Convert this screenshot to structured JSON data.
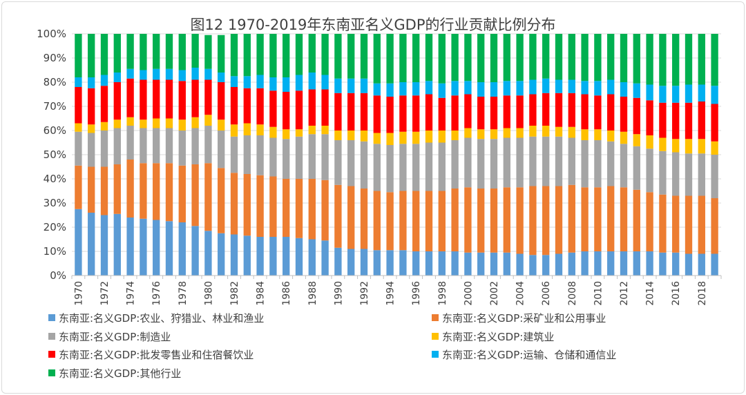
{
  "chart_data": {
    "type": "bar",
    "stacked": true,
    "title": "图12 1970-2019年东南亚名义GDP的行业贡献比例分布",
    "xlabel": "",
    "ylabel": "",
    "ylim": [
      0,
      100
    ],
    "yticks": [
      "0%",
      "10%",
      "20%",
      "30%",
      "40%",
      "50%",
      "60%",
      "70%",
      "80%",
      "90%",
      "100%"
    ],
    "xtick_labels": [
      "1970",
      "1972",
      "1974",
      "1976",
      "1978",
      "1980",
      "1982",
      "1984",
      "1986",
      "1988",
      "1990",
      "1992",
      "1994",
      "1996",
      "1998",
      "2000",
      "2002",
      "2004",
      "2006",
      "2008",
      "2010",
      "2012",
      "2014",
      "2016",
      "2018"
    ],
    "categories": [
      "1970",
      "1971",
      "1972",
      "1973",
      "1974",
      "1975",
      "1976",
      "1977",
      "1978",
      "1979",
      "1980",
      "1981",
      "1982",
      "1983",
      "1984",
      "1985",
      "1986",
      "1987",
      "1988",
      "1989",
      "1990",
      "1991",
      "1992",
      "1993",
      "1994",
      "1995",
      "1996",
      "1997",
      "1998",
      "1999",
      "2000",
      "2001",
      "2002",
      "2003",
      "2004",
      "2005",
      "2006",
      "2007",
      "2008",
      "2009",
      "2010",
      "2011",
      "2012",
      "2013",
      "2014",
      "2015",
      "2016",
      "2017",
      "2018",
      "2019"
    ],
    "series": [
      {
        "name": "东南亚:名义GDP:农业、狩猎业、林业和渔业",
        "color": "#5b9bd5",
        "values": [
          27.5,
          26,
          25,
          25.5,
          24,
          23.5,
          23,
          22.5,
          22,
          20.5,
          18.5,
          17.5,
          17,
          16.5,
          16,
          16,
          16,
          15.5,
          15,
          14.5,
          11.5,
          11,
          11,
          10.5,
          10.5,
          10.5,
          10,
          10,
          10,
          10,
          9.5,
          9.5,
          9.5,
          9.5,
          9,
          8.5,
          8.5,
          9,
          9.5,
          10,
          10,
          10,
          10,
          10,
          10,
          9.5,
          9.5,
          9,
          9,
          9
        ]
      },
      {
        "name": "东南亚:名义GDP:采矿业和公用事业",
        "color": "#ed7d31",
        "values": [
          18,
          19,
          20,
          20.5,
          24,
          23,
          23.5,
          24,
          23.5,
          25.5,
          28,
          27,
          25.5,
          25.5,
          25.5,
          25,
          24,
          24.5,
          25,
          25,
          26,
          26,
          25,
          24.5,
          24,
          24.5,
          25,
          25,
          25,
          26,
          27,
          26.5,
          26.5,
          27,
          27.5,
          28.5,
          28.5,
          28,
          28,
          26.5,
          26.5,
          27,
          26.5,
          25.5,
          24.5,
          24,
          23.5,
          24,
          24,
          23
        ]
      },
      {
        "name": "东南亚:名义GDP:制造业",
        "color": "#a5a5a5",
        "values": [
          14,
          14,
          15,
          15,
          14,
          14.5,
          14.5,
          14.5,
          14.5,
          15,
          15.5,
          15.5,
          15,
          16,
          16.5,
          16,
          16.5,
          17.5,
          18.5,
          19,
          18.5,
          19,
          19.5,
          19.5,
          19.5,
          19.5,
          19.5,
          20,
          20,
          20,
          20.5,
          20.5,
          20.5,
          20.5,
          20.5,
          20.5,
          20.5,
          20.5,
          19.5,
          19.5,
          19.5,
          18.5,
          18,
          18,
          18,
          18,
          18,
          17.5,
          17.5,
          18
        ]
      },
      {
        "name": "东南亚:名义GDP:建筑业",
        "color": "#ffc000",
        "values": [
          3.5,
          3.5,
          3.5,
          3.5,
          3.5,
          3.5,
          4,
          4,
          4.5,
          4.5,
          4.5,
          4.5,
          5,
          5,
          4.5,
          4.5,
          4,
          3,
          3.5,
          3.5,
          4,
          4,
          4.5,
          4.5,
          5,
          5,
          5,
          5,
          5,
          4,
          4,
          4,
          4,
          4,
          4,
          4.5,
          4.5,
          4,
          4.5,
          4.5,
          4.5,
          4.5,
          5,
          5,
          5.5,
          5.5,
          5.5,
          6,
          6,
          5.5
        ]
      },
      {
        "name": "东南亚:名义GDP:批发零售业和住宿餐饮业",
        "color": "#ff0000",
        "values": [
          15,
          15,
          15,
          15.5,
          16,
          16.5,
          16,
          16,
          16,
          15.5,
          14.5,
          15.5,
          15.5,
          14.5,
          15,
          15,
          15.5,
          16,
          15,
          15,
          15.5,
          15.5,
          15.5,
          15.5,
          15,
          15,
          15,
          15,
          13.5,
          14.5,
          14,
          13.5,
          13.5,
          13.5,
          13.5,
          13,
          13.5,
          14,
          14,
          14.5,
          14,
          15,
          14.5,
          15,
          14.5,
          14.5,
          15,
          15,
          15.5,
          15.5
        ]
      },
      {
        "name": "东南亚:名义GDP:运输、仓储和通信业",
        "color": "#00b0f0",
        "values": [
          4,
          4.5,
          4.5,
          4,
          4,
          4,
          4.5,
          4.5,
          4.5,
          5,
          4.5,
          4,
          4.5,
          5,
          5.5,
          5.5,
          6,
          6.5,
          7,
          6,
          6,
          6,
          6,
          5,
          5.5,
          5.5,
          5.5,
          5.5,
          6,
          6,
          5.5,
          6,
          6,
          6,
          6,
          6,
          6,
          5.5,
          5.5,
          5.5,
          6,
          6,
          6,
          6,
          6.5,
          7,
          7,
          7.5,
          7,
          7.5
        ]
      },
      {
        "name": "东南亚:名义GDP:其他行业",
        "color": "#00b050",
        "values": [
          18,
          18,
          17,
          16,
          14.5,
          15,
          14.5,
          14.5,
          15,
          14,
          14,
          15.5,
          17.5,
          17.5,
          17,
          18,
          18,
          17,
          16,
          17,
          18.5,
          18.5,
          18.5,
          20.5,
          20.5,
          20,
          20,
          19.5,
          20.5,
          19.5,
          19.5,
          20,
          20,
          19.5,
          19.5,
          19,
          18.5,
          19,
          19,
          19.5,
          19.5,
          19,
          20,
          20.5,
          21,
          21.5,
          21.5,
          21,
          21,
          21.5
        ]
      }
    ]
  }
}
